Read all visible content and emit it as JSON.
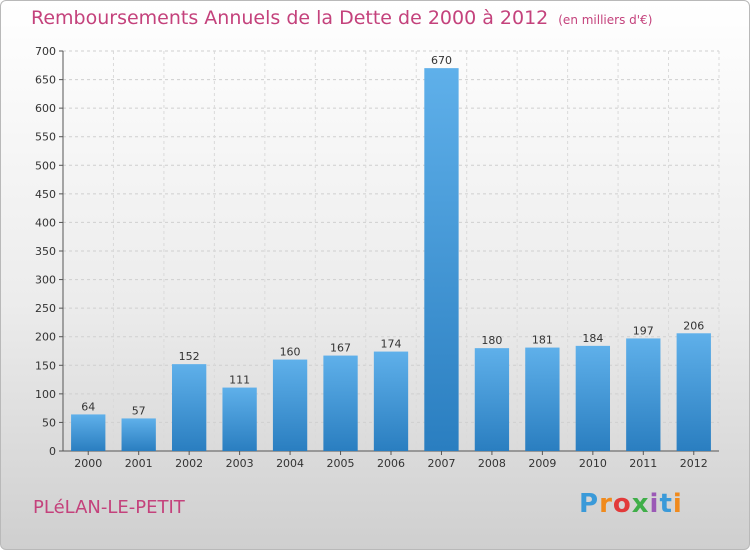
{
  "header": {
    "title": "Remboursements Annuels de la Dette de 2000 à 2012",
    "unit": "(en milliers d'€)"
  },
  "footer": {
    "city": "PLéLAN-LE-PETIT",
    "brand": "Proxiti",
    "brand_colors": [
      "#3a9ad9",
      "#f08a1c",
      "#e23a3a",
      "#3fae49",
      "#9b59b6",
      "#3a9ad9",
      "#f08a1c"
    ]
  },
  "chart_data": {
    "type": "bar",
    "title": "Remboursements Annuels de la Dette de 2000 à 2012",
    "subtitle": "(en milliers d'€)",
    "categories": [
      "2000",
      "2001",
      "2002",
      "2003",
      "2004",
      "2005",
      "2006",
      "2007",
      "2008",
      "2009",
      "2010",
      "2011",
      "2012"
    ],
    "values": [
      64,
      57,
      152,
      111,
      160,
      167,
      174,
      670,
      180,
      181,
      184,
      197,
      206
    ],
    "ylim": [
      0,
      700
    ],
    "yticks": [
      0,
      50,
      100,
      150,
      200,
      250,
      300,
      350,
      400,
      450,
      500,
      550,
      600,
      650,
      700
    ],
    "grid": true,
    "bar_color": "#3d95d4"
  }
}
